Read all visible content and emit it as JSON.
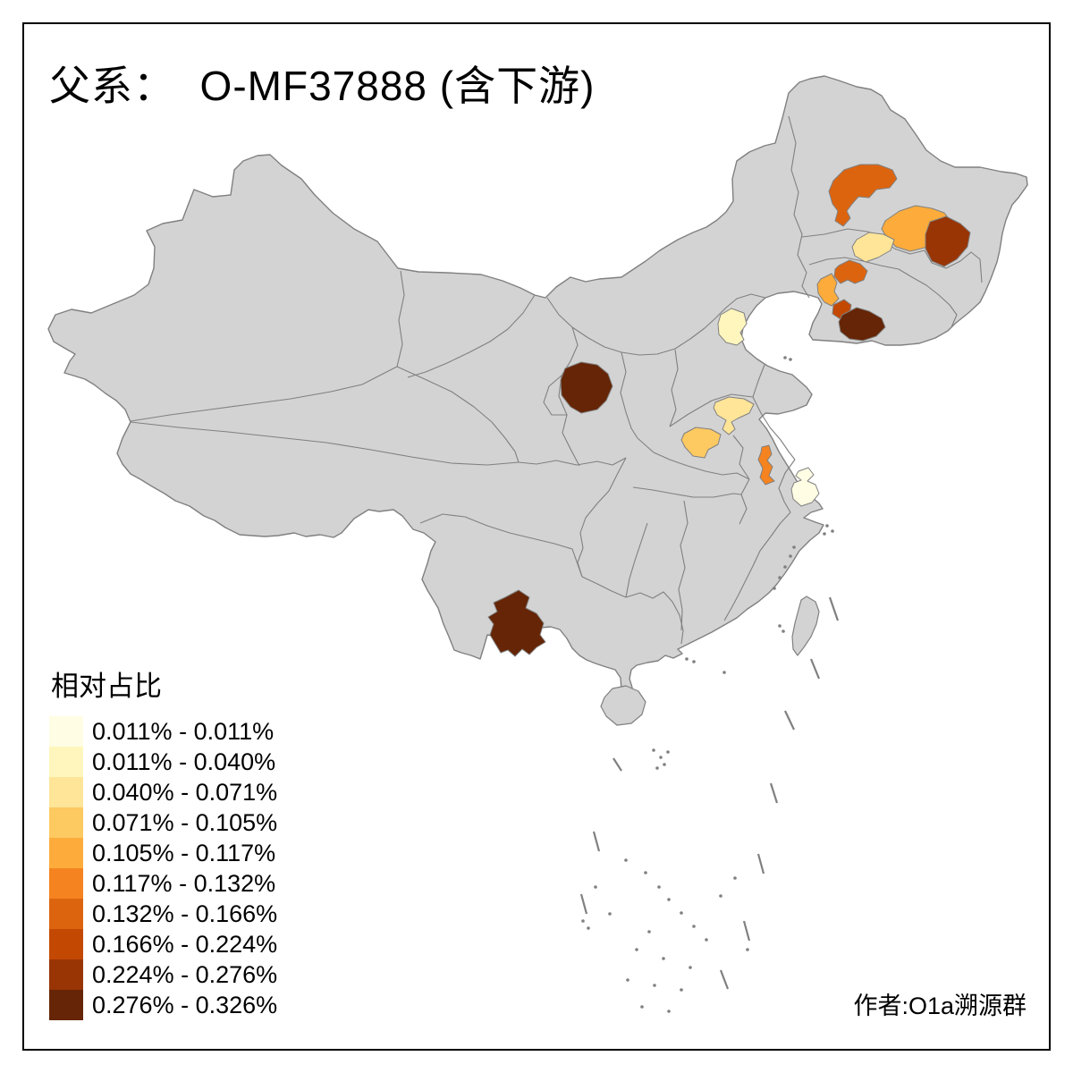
{
  "title": {
    "text": "父系：  O-MF37888 (含下游)"
  },
  "attribution": {
    "text": "作者:O1a溯源群"
  },
  "legend": {
    "title": "相对占比",
    "classes": [
      {
        "label": "0.011% - 0.011%",
        "color": "#FFFDE3"
      },
      {
        "label": "0.011% - 0.040%",
        "color": "#FFF6BD"
      },
      {
        "label": "0.040% - 0.071%",
        "color": "#FEE598"
      },
      {
        "label": "0.071% - 0.105%",
        "color": "#FDC961"
      },
      {
        "label": "0.105% - 0.117%",
        "color": "#FDAC3B"
      },
      {
        "label": "0.117% - 0.132%",
        "color": "#F5831F"
      },
      {
        "label": "0.132% - 0.166%",
        "color": "#DD640F"
      },
      {
        "label": "0.166% - 0.224%",
        "color": "#C34903"
      },
      {
        "label": "0.224% - 0.276%",
        "color": "#993404"
      },
      {
        "label": "0.276% - 0.326%",
        "color": "#652506"
      }
    ]
  },
  "map": {
    "land_color": "#D3D3D3",
    "border_color": "#808080",
    "sea_color": "#FFFFFF",
    "regions": [
      {
        "id": "region-01",
        "location": "northeast-west",
        "class": 7
      },
      {
        "id": "region-02",
        "location": "northeast-central",
        "class": 5
      },
      {
        "id": "region-03",
        "location": "northeast-east",
        "class": 9
      },
      {
        "id": "region-04",
        "location": "northeast-central-south",
        "class": 3
      },
      {
        "id": "region-05",
        "location": "northeast-south-upper",
        "class": 7
      },
      {
        "id": "region-06",
        "location": "northeast-south-west",
        "class": 5
      },
      {
        "id": "region-07",
        "location": "northeast-south-middle",
        "class": 8
      },
      {
        "id": "region-08",
        "location": "northeast-south-coastal",
        "class": 10
      },
      {
        "id": "region-09",
        "location": "north-beijing-area",
        "class": 2
      },
      {
        "id": "region-10",
        "location": "north-central-loess",
        "class": 10
      },
      {
        "id": "region-11",
        "location": "central-plain-north",
        "class": 3
      },
      {
        "id": "region-12",
        "location": "central-plain-west",
        "class": 4
      },
      {
        "id": "region-13",
        "location": "east-plain-strip",
        "class": 6
      },
      {
        "id": "region-14",
        "location": "east-coastal",
        "class": 1
      },
      {
        "id": "region-15",
        "location": "southwest",
        "class": 10
      }
    ]
  },
  "chart_data": {
    "type": "choropleth",
    "title": "父系：  O-MF37888 (含下游)",
    "legend_title": "相对占比",
    "unit": "%",
    "bins": [
      "0.011% - 0.011%",
      "0.011% - 0.040%",
      "0.040% - 0.071%",
      "0.071% - 0.105%",
      "0.105% - 0.117%",
      "0.117% - 0.132%",
      "0.132% - 0.166%",
      "0.166% - 0.224%",
      "0.224% - 0.276%",
      "0.276% - 0.326%"
    ],
    "bin_colors": [
      "#FFFDE3",
      "#FFF6BD",
      "#FEE598",
      "#FDC961",
      "#FDAC3B",
      "#F5831F",
      "#DD640F",
      "#C34903",
      "#993404",
      "#652506"
    ],
    "regions": [
      {
        "id": "region-01",
        "location": "northeast-west",
        "bin": 7,
        "range": "0.132% - 0.166%"
      },
      {
        "id": "region-02",
        "location": "northeast-central",
        "bin": 5,
        "range": "0.105% - 0.117%"
      },
      {
        "id": "region-03",
        "location": "northeast-east",
        "bin": 9,
        "range": "0.224% - 0.276%"
      },
      {
        "id": "region-04",
        "location": "northeast-central-south",
        "bin": 3,
        "range": "0.040% - 0.071%"
      },
      {
        "id": "region-05",
        "location": "northeast-south-upper",
        "bin": 7,
        "range": "0.132% - 0.166%"
      },
      {
        "id": "region-06",
        "location": "northeast-south-west",
        "bin": 5,
        "range": "0.105% - 0.117%"
      },
      {
        "id": "region-07",
        "location": "northeast-south-middle",
        "bin": 8,
        "range": "0.166% - 0.224%"
      },
      {
        "id": "region-08",
        "location": "northeast-south-coastal",
        "bin": 10,
        "range": "0.276% - 0.326%"
      },
      {
        "id": "region-09",
        "location": "north-beijing-area",
        "bin": 2,
        "range": "0.011% - 0.040%"
      },
      {
        "id": "region-10",
        "location": "north-central-loess",
        "bin": 10,
        "range": "0.276% - 0.326%"
      },
      {
        "id": "region-11",
        "location": "central-plain-north",
        "bin": 3,
        "range": "0.040% - 0.071%"
      },
      {
        "id": "region-12",
        "location": "central-plain-west",
        "bin": 4,
        "range": "0.071% - 0.105%"
      },
      {
        "id": "region-13",
        "location": "east-plain-strip",
        "bin": 6,
        "range": "0.117% - 0.132%"
      },
      {
        "id": "region-14",
        "location": "east-coastal",
        "bin": 1,
        "range": "0.011% - 0.011%"
      },
      {
        "id": "region-15",
        "location": "southwest",
        "bin": 10,
        "range": "0.276% - 0.326%"
      }
    ]
  }
}
